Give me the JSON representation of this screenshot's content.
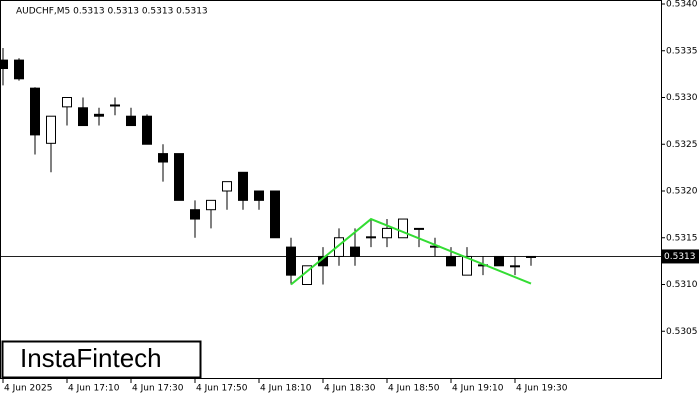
{
  "header": "AUDCHF,M5  0.5313 0.5313 0.5313 0.5313",
  "logo": "InstaFintech",
  "chart_data": {
    "type": "candlestick",
    "categories": [
      "4 Jun 2025",
      null,
      null,
      null,
      "4 Jun 17:10",
      null,
      null,
      null,
      "4 Jun 17:30",
      null,
      null,
      null,
      "4 Jun 17:50",
      null,
      null,
      null,
      "4 Jun 18:10",
      null,
      null,
      null,
      "4 Jun 18:30",
      null,
      null,
      null,
      "4 Jun 18:50",
      null,
      null,
      null,
      "4 Jun 19:10",
      null,
      null,
      null,
      "4 Jun 19:30",
      null
    ],
    "open": [
      0.5334,
      0.5334,
      0.5331,
      0.53251,
      0.5329,
      0.53289,
      0.53282,
      0.53292,
      0.5328,
      0.5328,
      0.5324,
      0.5324,
      0.5318,
      0.5318,
      0.532,
      0.5322,
      0.532,
      0.532,
      0.5314,
      0.531,
      0.5313,
      0.5313,
      0.5314,
      0.5315,
      0.5315,
      0.5315,
      0.5316,
      0.5314,
      0.5313,
      0.5311,
      0.5312,
      0.5313,
      0.5312,
      0.5313
    ],
    "high": [
      0.53353,
      0.53342,
      0.53311,
      0.5328,
      0.533,
      0.533,
      0.53289,
      0.533,
      0.53289,
      0.53282,
      0.5325,
      0.5324,
      0.5319,
      0.5319,
      0.5321,
      0.5322,
      0.532,
      0.532,
      0.5315,
      0.5312,
      0.5314,
      0.5316,
      0.5316,
      0.5317,
      0.5317,
      0.5317,
      0.5316,
      0.5315,
      0.5314,
      0.5314,
      0.5313,
      0.5313,
      0.5313,
      0.5313
    ],
    "low": [
      0.53313,
      0.53318,
      0.53239,
      0.5322,
      0.5327,
      0.5327,
      0.5327,
      0.53281,
      0.5327,
      0.5325,
      0.5321,
      0.5319,
      0.5315,
      0.5316,
      0.5318,
      0.5318,
      0.5318,
      0.5315,
      0.531,
      0.531,
      0.531,
      0.5312,
      0.5312,
      0.5314,
      0.5314,
      0.5315,
      0.5314,
      0.5313,
      0.5312,
      0.5311,
      0.5311,
      0.5312,
      0.5311,
      0.5312
    ],
    "close": [
      0.53331,
      0.5332,
      0.5326,
      0.5328,
      0.533,
      0.5327,
      0.5328,
      0.53292,
      0.5327,
      0.5325,
      0.53231,
      0.5319,
      0.5317,
      0.5319,
      0.5321,
      0.5319,
      0.5319,
      0.5315,
      0.5311,
      0.5312,
      0.5312,
      0.5315,
      0.5313,
      0.53151,
      0.5316,
      0.5317,
      0.53159,
      0.53141,
      0.5312,
      0.5313,
      0.53121,
      0.5312,
      0.5312,
      0.5313
    ],
    "up_color": "#ffffff",
    "down_color": "#000000",
    "ylim": [
      0.53,
      0.534
    ],
    "yticks": [
      {
        "value": 0.534,
        "label": "0.5340"
      },
      0.5335,
      {
        "value": 0.533,
        "label": "0.5330"
      },
      0.5325,
      {
        "value": 0.532,
        "label": "0.5320"
      },
      0.5315,
      {
        "value": 0.531,
        "label": "0.5310"
      },
      0.5305
    ],
    "last_price": {
      "value": 0.5313,
      "label": "0.5313"
    },
    "pattern": {
      "x": [
        18,
        23,
        33
      ],
      "values": [
        0.531,
        0.5317,
        0.53101
      ],
      "color": "#33dd33"
    }
  }
}
